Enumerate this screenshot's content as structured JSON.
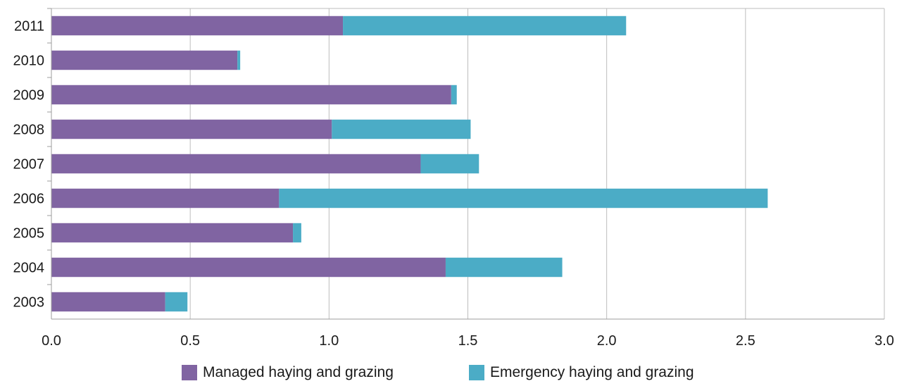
{
  "chart_data": {
    "type": "bar",
    "orientation": "horizontal",
    "stacked": true,
    "title": "",
    "xlabel": "",
    "ylabel": "",
    "categories": [
      "2003",
      "2004",
      "2005",
      "2006",
      "2007",
      "2008",
      "2009",
      "2010",
      "2011"
    ],
    "series": [
      {
        "name": "Managed haying and grazing",
        "color": "#8064a2",
        "values": [
          0.41,
          1.42,
          0.87,
          0.82,
          1.33,
          1.01,
          1.44,
          0.67,
          1.05
        ]
      },
      {
        "name": "Emergency haying and grazing",
        "color": "#4bacc6",
        "values": [
          0.08,
          0.42,
          0.03,
          1.76,
          0.21,
          0.5,
          0.02,
          0.01,
          1.02
        ]
      }
    ],
    "xlim": [
      0.0,
      3.0
    ],
    "x_ticks": [
      "0.0",
      "0.5",
      "1.0",
      "1.5",
      "2.0",
      "2.5",
      "3.0"
    ],
    "grid": "vertical",
    "legend_position": "bottom-center"
  }
}
